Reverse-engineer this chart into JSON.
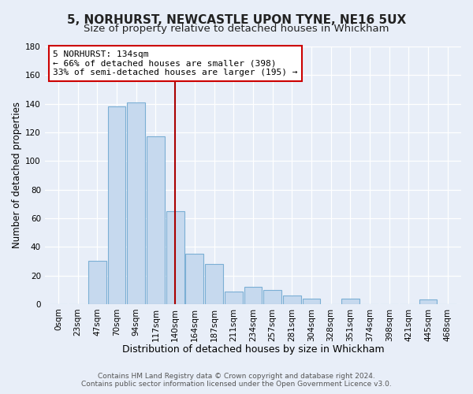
{
  "title": "5, NORHURST, NEWCASTLE UPON TYNE, NE16 5UX",
  "subtitle": "Size of property relative to detached houses in Whickham",
  "xlabel": "Distribution of detached houses by size in Whickham",
  "ylabel": "Number of detached properties",
  "bar_labels": [
    "0sqm",
    "23sqm",
    "47sqm",
    "70sqm",
    "94sqm",
    "117sqm",
    "140sqm",
    "164sqm",
    "187sqm",
    "211sqm",
    "234sqm",
    "257sqm",
    "281sqm",
    "304sqm",
    "328sqm",
    "351sqm",
    "374sqm",
    "398sqm",
    "421sqm",
    "445sqm",
    "468sqm"
  ],
  "bar_values": [
    0,
    0,
    30,
    138,
    141,
    117,
    65,
    35,
    28,
    9,
    12,
    10,
    6,
    4,
    0,
    4,
    0,
    0,
    0,
    3,
    0
  ],
  "bar_color": "#c6d9ee",
  "bar_edge_color": "#7bafd4",
  "vline_color": "#aa0000",
  "vline_x": 6.0,
  "annotation_line1": "5 NORHURST: 134sqm",
  "annotation_line2": "← 66% of detached houses are smaller (398)",
  "annotation_line3": "33% of semi-detached houses are larger (195) →",
  "annotation_box_color": "#ffffff",
  "annotation_box_edge": "#cc0000",
  "ylim": [
    0,
    180
  ],
  "yticks": [
    0,
    20,
    40,
    60,
    80,
    100,
    120,
    140,
    160,
    180
  ],
  "footer_line1": "Contains HM Land Registry data © Crown copyright and database right 2024.",
  "footer_line2": "Contains public sector information licensed under the Open Government Licence v3.0.",
  "background_color": "#e8eef8",
  "plot_bg_color": "#e8eef8",
  "grid_color": "#ffffff",
  "title_fontsize": 11,
  "subtitle_fontsize": 9.5,
  "xlabel_fontsize": 9,
  "ylabel_fontsize": 8.5,
  "footer_fontsize": 6.5,
  "tick_fontsize": 7.5,
  "ann_fontsize": 8.0
}
